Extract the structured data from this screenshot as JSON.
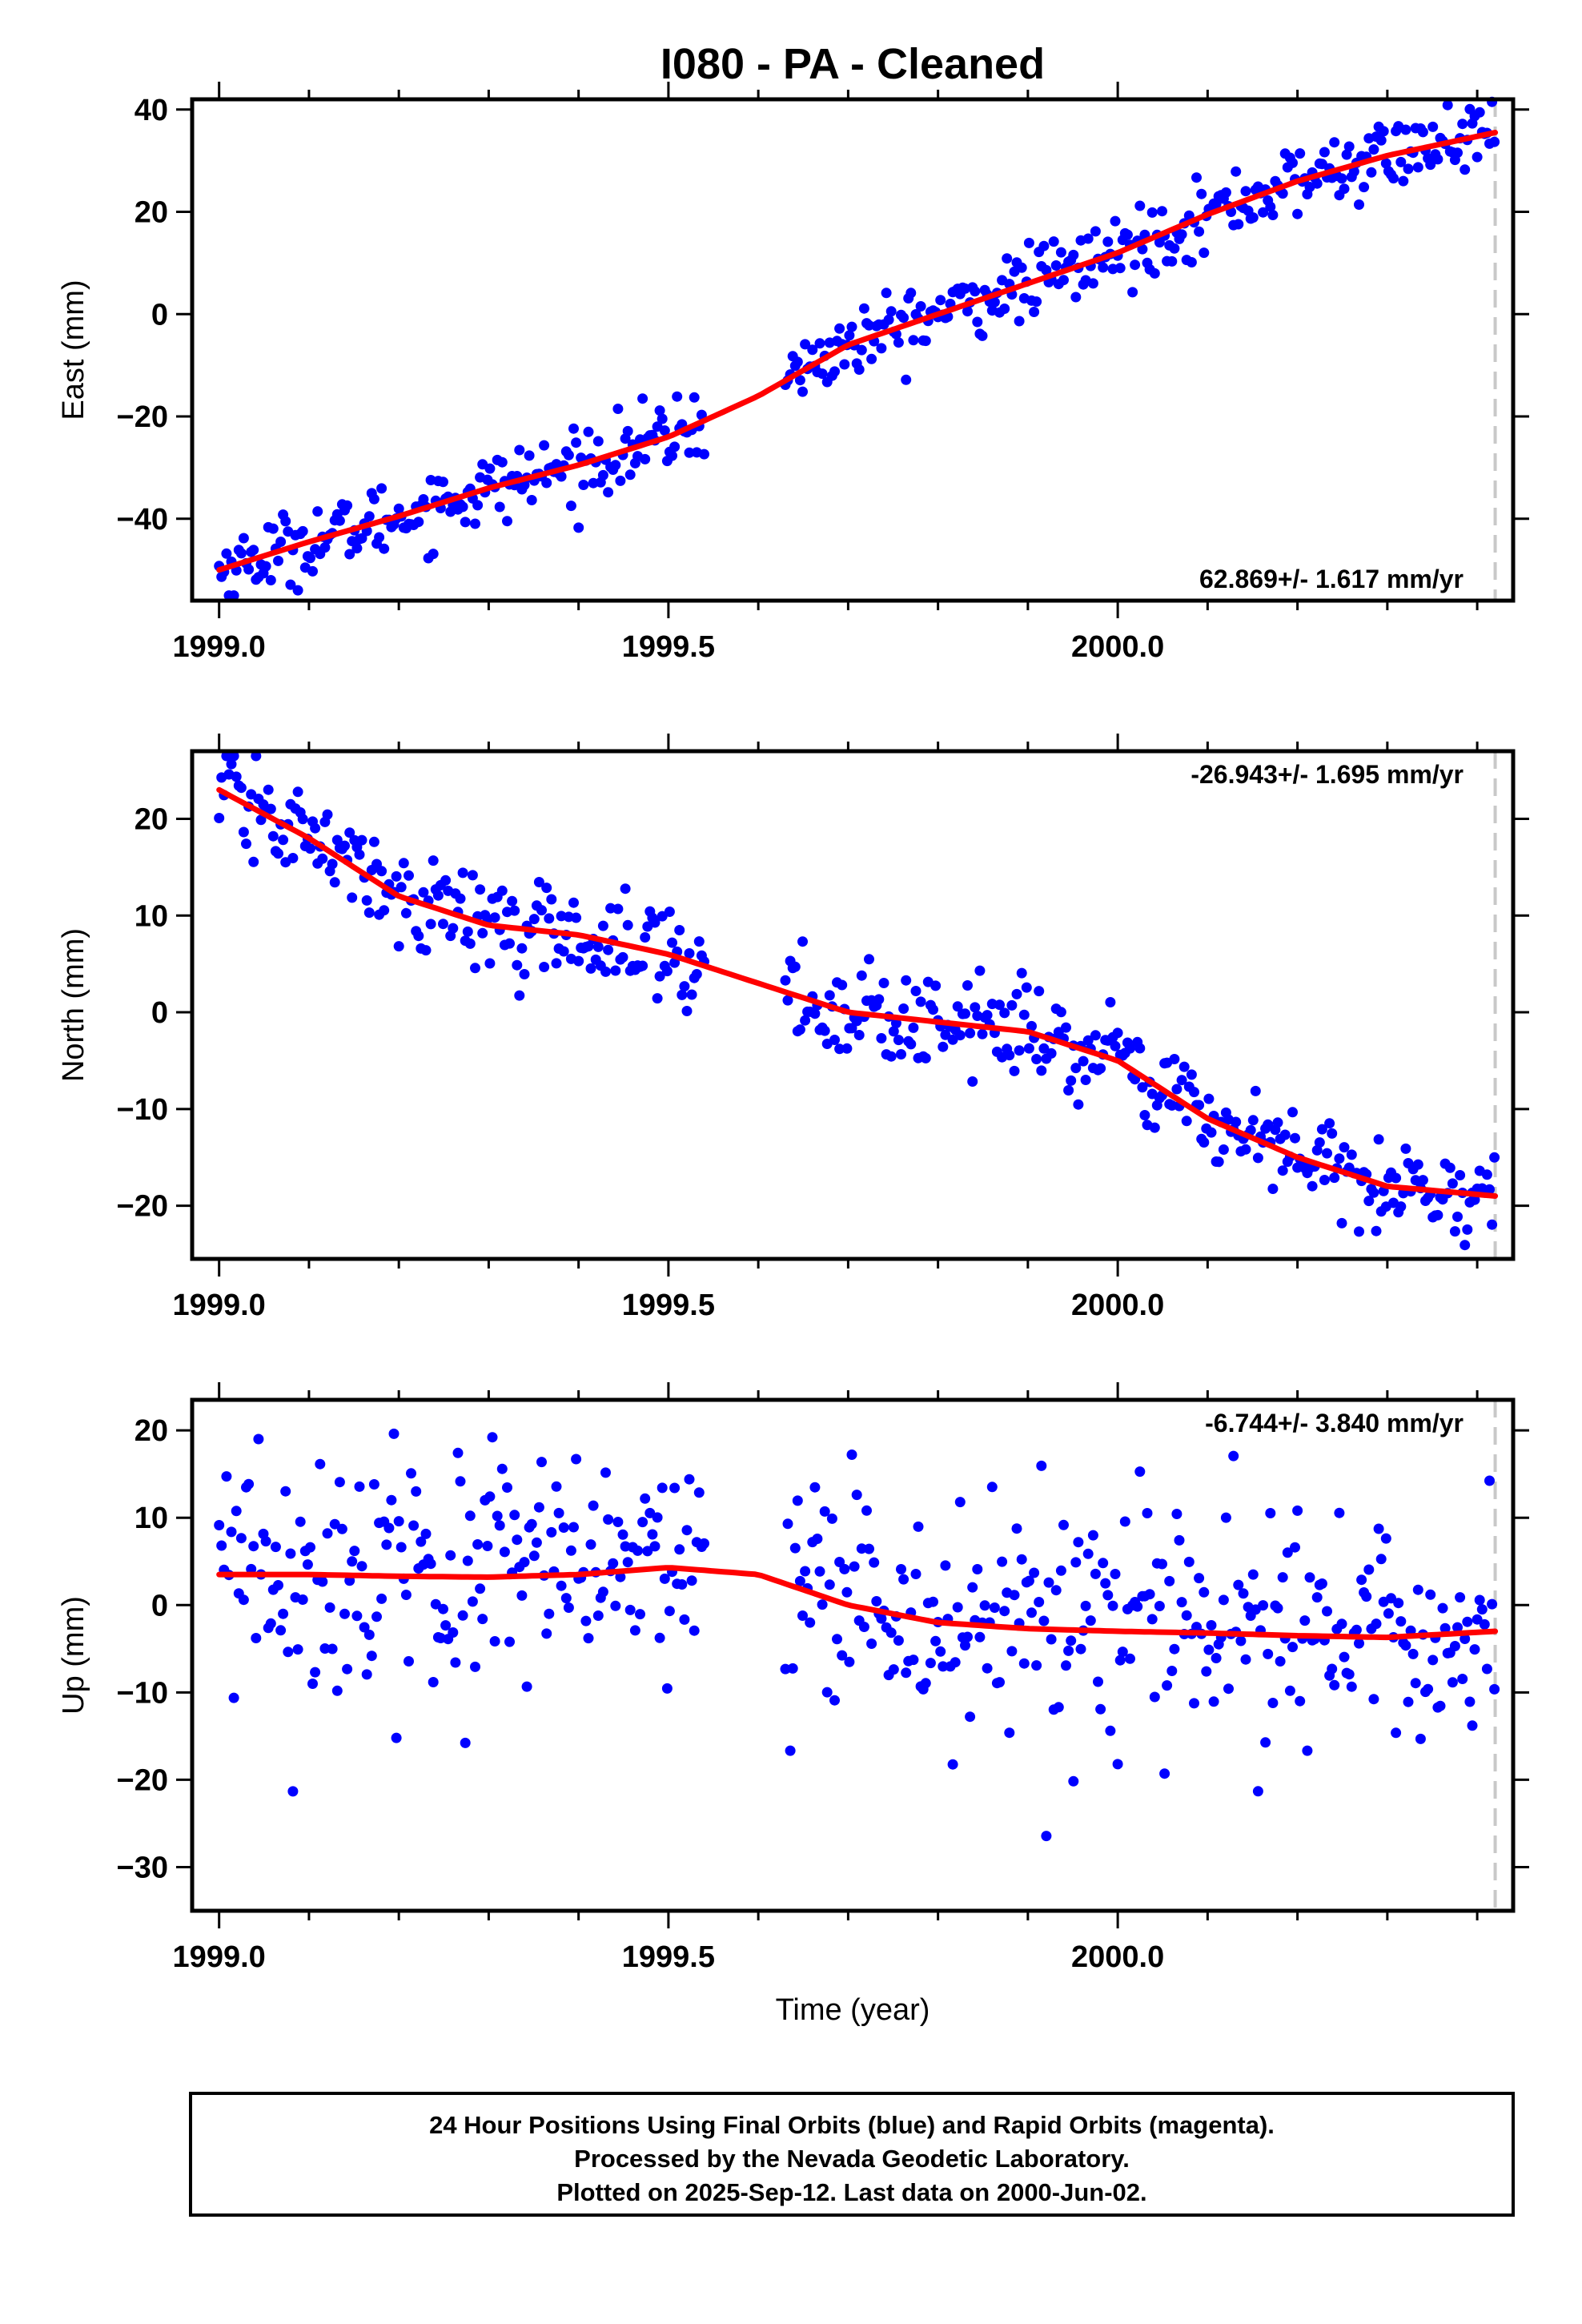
{
  "title": "I080  - PA - Cleaned",
  "footer": {
    "lines": [
      "24 Hour Positions Using Final Orbits (blue) and Rapid Orbits (magenta).",
      "Processed by the Nevada Geodetic Laboratory.",
      "Plotted on 2025-Sep-12. Last data on 2000-Jun-02."
    ]
  },
  "colors": {
    "points": "#0000ff",
    "fit": "#ff0000",
    "frame": "#000000",
    "last_data_line": "#c8c8c8"
  },
  "chart_data": [
    {
      "type": "scatter",
      "ylabel": "East (mm)",
      "xlabel": "",
      "xlim": [
        1998.97,
        2000.44
      ],
      "ylim": [
        -56,
        42
      ],
      "xticks": [
        1999.0,
        1999.5,
        2000.0
      ],
      "xtick_labels": [
        "1999.0",
        "1999.5",
        "2000.0"
      ],
      "yticks": [
        -40,
        -20,
        0,
        20,
        40
      ],
      "ytick_labels": [
        "−40",
        "−20",
        "0",
        "20",
        "40"
      ],
      "rate_label": "62.869+/- 1.617 mm/yr",
      "rate_position": "bottom-right",
      "last_data_x": 2000.42,
      "data_x_range": [
        1999.0,
        2000.42
      ],
      "data_gap": [
        1999.54,
        1999.63
      ],
      "fit": {
        "x": [
          1999.0,
          1999.1,
          1999.2,
          1999.3,
          1999.4,
          1999.5,
          1999.6,
          1999.7,
          1999.8,
          1999.9,
          2000.0,
          2000.1,
          2000.2,
          2000.3,
          2000.42
        ],
        "y": [
          -50,
          -44.5,
          -39.5,
          -34,
          -29.5,
          -24,
          -16,
          -6,
          0,
          6,
          12,
          19.5,
          26,
          31,
          35.5
        ]
      },
      "scatter_spread": 3.5
    },
    {
      "type": "scatter",
      "ylabel": "North (mm)",
      "xlabel": "",
      "xlim": [
        1998.97,
        2000.44
      ],
      "ylim": [
        -25.5,
        27
      ],
      "xticks": [
        1999.0,
        1999.5,
        2000.0
      ],
      "xtick_labels": [
        "1999.0",
        "1999.5",
        "2000.0"
      ],
      "yticks": [
        -20,
        -10,
        0,
        10,
        20
      ],
      "ytick_labels": [
        "−20",
        "−10",
        "0",
        "10",
        "20"
      ],
      "rate_label": "-26.943+/- 1.695 mm/yr",
      "rate_position": "top-right",
      "last_data_x": 2000.42,
      "data_x_range": [
        1999.0,
        2000.42
      ],
      "data_gap": [
        1999.54,
        1999.63
      ],
      "fit": {
        "x": [
          1999.0,
          1999.1,
          1999.2,
          1999.3,
          1999.4,
          1999.5,
          1999.6,
          1999.7,
          1999.8,
          1999.9,
          2000.0,
          2000.1,
          2000.2,
          2000.3,
          2000.42
        ],
        "y": [
          23,
          18,
          12,
          9,
          8,
          6,
          3,
          0,
          -1,
          -2,
          -5,
          -11,
          -15,
          -18,
          -19
        ]
      },
      "scatter_spread": 2.5
    },
    {
      "type": "scatter",
      "ylabel": "Up (mm)",
      "xlabel": "Time (year)",
      "xlim": [
        1998.97,
        2000.44
      ],
      "ylim": [
        -35,
        23.5
      ],
      "xticks": [
        1999.0,
        1999.5,
        2000.0
      ],
      "xtick_labels": [
        "1999.0",
        "1999.5",
        "2000.0"
      ],
      "yticks": [
        -30,
        -20,
        -10,
        0,
        10,
        20
      ],
      "ytick_labels": [
        "−30",
        "−20",
        "−10",
        "0",
        "10",
        "20"
      ],
      "rate_label": "-6.744+/- 3.840 mm/yr",
      "rate_position": "top-right",
      "last_data_x": 2000.42,
      "data_x_range": [
        1999.0,
        2000.42
      ],
      "data_gap": [
        1999.54,
        1999.63
      ],
      "fit": {
        "x": [
          1999.0,
          1999.1,
          1999.2,
          1999.3,
          1999.4,
          1999.5,
          1999.6,
          1999.7,
          1999.8,
          1999.9,
          2000.0,
          2000.1,
          2000.2,
          2000.3,
          2000.42
        ],
        "y": [
          3.5,
          3.5,
          3.3,
          3.2,
          3.5,
          4.3,
          3.5,
          0,
          -2,
          -2.7,
          -3,
          -3.2,
          -3.5,
          -3.7,
          -3
        ]
      },
      "scatter_spread": 7
    }
  ]
}
